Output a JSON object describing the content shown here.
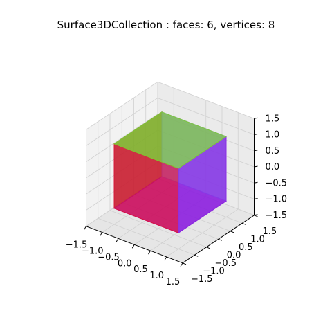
{
  "chart_data": {
    "type": "3d-surface",
    "title": "Surface3DCollection :  faces: 6,  vertices: 8",
    "faces": 6,
    "vertices": 8,
    "xlim": [
      -1.5,
      1.5
    ],
    "ylim": [
      -1.5,
      1.5
    ],
    "zlim": [
      -1.5,
      1.5
    ],
    "x_ticks": [
      "−1.5",
      "−1.0",
      "−0.5",
      "0.0",
      "0.5",
      "1.0",
      "1.5"
    ],
    "y_ticks": [
      "−1.5",
      "−1.0",
      "−0.5",
      "0.0",
      "0.5",
      "1.0",
      "1.5"
    ],
    "z_ticks": [
      "−1.5",
      "−1.0",
      "−0.5",
      "0.0",
      "0.5",
      "1.0",
      "1.5"
    ],
    "cube": {
      "vertices": [
        [
          -1,
          -1,
          -1
        ],
        [
          1,
          -1,
          -1
        ],
        [
          1,
          1,
          -1
        ],
        [
          -1,
          1,
          -1
        ],
        [
          -1,
          -1,
          1
        ],
        [
          1,
          -1,
          1
        ],
        [
          1,
          1,
          1
        ],
        [
          -1,
          1,
          1
        ]
      ],
      "faces": [
        {
          "name": "left",
          "verts": [
            0,
            3,
            7,
            4
          ],
          "color": "#8B4513"
        },
        {
          "name": "bottom",
          "verts": [
            0,
            1,
            2,
            3
          ],
          "color": "#9400D3"
        },
        {
          "name": "back",
          "verts": [
            3,
            2,
            6,
            7
          ],
          "color": "#7B68EE"
        },
        {
          "name": "front",
          "verts": [
            0,
            1,
            5,
            4
          ],
          "color": "#DC143C"
        },
        {
          "name": "right",
          "verts": [
            1,
            2,
            6,
            5
          ],
          "color": "#8A2BE2"
        },
        {
          "name": "top",
          "verts": [
            4,
            5,
            6,
            7
          ],
          "color": "#7CCD32"
        }
      ]
    }
  }
}
